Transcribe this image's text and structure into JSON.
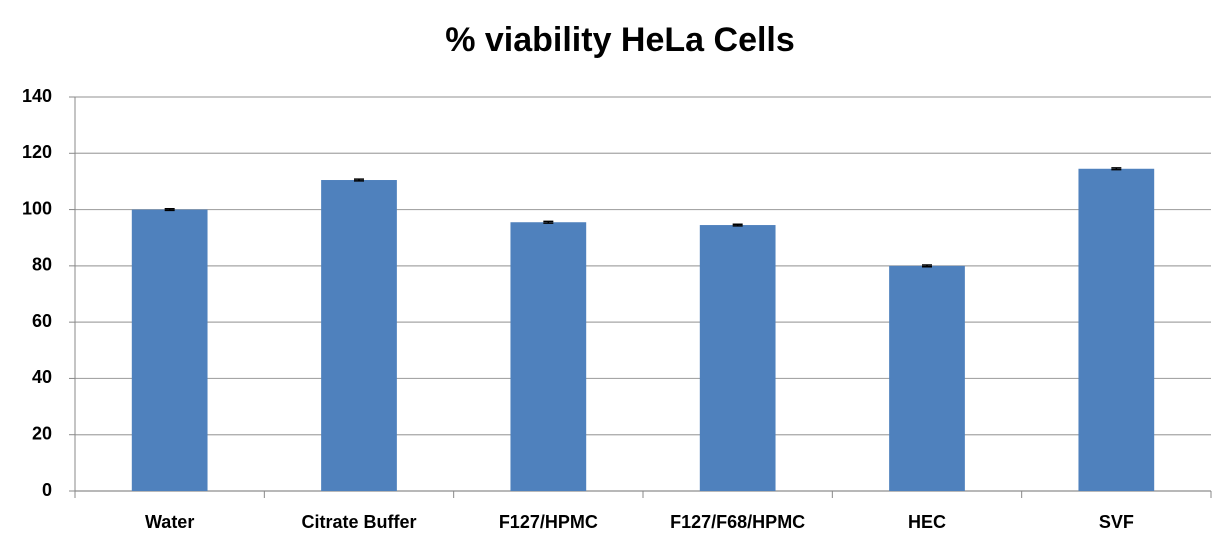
{
  "chart_data": {
    "type": "bar",
    "title": "% viability HeLa Cells",
    "categories": [
      "Water",
      "Citrate Buffer",
      "F127/HPMC",
      "F127/F68/HPMC",
      "HEC",
      "SVF"
    ],
    "values": [
      100,
      110.5,
      95.5,
      94.5,
      80,
      114.5
    ],
    "errors": [
      0.3,
      0.3,
      0.3,
      0.3,
      0.3,
      0.3
    ],
    "color": "#4f81bd",
    "ylim": [
      0,
      140
    ],
    "yticks": [
      0,
      20,
      40,
      60,
      80,
      100,
      120,
      140
    ],
    "grid": true
  }
}
